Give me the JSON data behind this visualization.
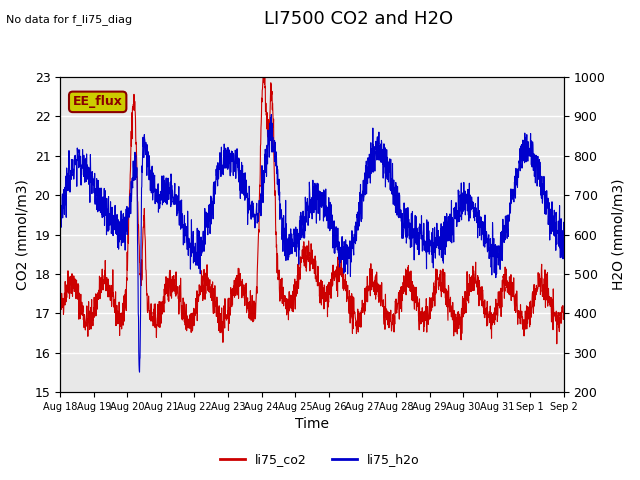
{
  "title": "LI7500 CO2 and H2O",
  "top_left_text": "No data for f_li75_diag",
  "annotation_box": "EE_flux",
  "xlabel": "Time",
  "ylabel_left": "CO2 (mmol/m3)",
  "ylabel_right": "H2O (mmol/m3)",
  "ylim_left": [
    15.0,
    23.0
  ],
  "ylim_right": [
    200,
    1000
  ],
  "x_tick_labels": [
    "Aug 18",
    "Aug 19",
    "Aug 20",
    "Aug 21",
    "Aug 22",
    "Aug 23",
    "Aug 24",
    "Aug 25",
    "Aug 26",
    "Aug 27",
    "Aug 28",
    "Aug 29",
    "Aug 30",
    "Aug 31",
    "Sep 1",
    "Sep 2"
  ],
  "legend_labels": [
    "li75_co2",
    "li75_h2o"
  ],
  "legend_colors": [
    "#cc0000",
    "#0000cc"
  ],
  "bg_color": "#e8e8e8",
  "line_color_co2": "#cc0000",
  "line_color_h2o": "#0000cc",
  "title_fontsize": 13,
  "annotation_bg": "#cccc00",
  "n_points": 2000
}
